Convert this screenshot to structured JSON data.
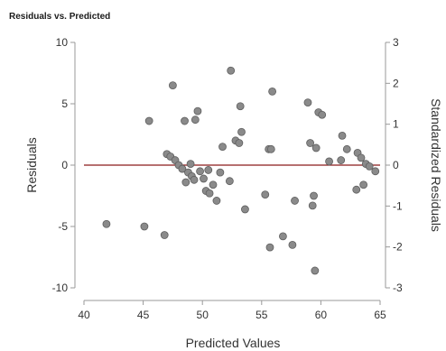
{
  "chart_data": {
    "type": "scatter",
    "title": "Residuals vs. Predicted",
    "xlabel": "Predicted Values",
    "ylabel": "Residuals",
    "y2label": "Standardized Residuals",
    "xlim": [
      40,
      65
    ],
    "ylim": [
      -10,
      10
    ],
    "y2lim": [
      -3,
      3
    ],
    "x_ticks": [
      "40",
      "45",
      "50",
      "55",
      "60",
      "65"
    ],
    "y_ticks": [
      "10",
      "5",
      "0",
      "-5",
      "-10"
    ],
    "y2_ticks": [
      "3",
      "2",
      "1",
      "0",
      "-1",
      "-2",
      "-3"
    ],
    "reference_line_y": 0,
    "grid": false,
    "colors": {
      "point_fill": "#8a8a8a",
      "point_stroke": "#5e5e5e",
      "reference_line": "#8b1a1a",
      "axis": "#999999"
    },
    "points": [
      {
        "x": 41.9,
        "y": -4.8
      },
      {
        "x": 45.1,
        "y": -5.0
      },
      {
        "x": 45.5,
        "y": 3.6
      },
      {
        "x": 46.8,
        "y": -5.7
      },
      {
        "x": 47.0,
        "y": 0.9
      },
      {
        "x": 47.3,
        "y": 0.7
      },
      {
        "x": 47.5,
        "y": 6.5
      },
      {
        "x": 47.7,
        "y": 0.4
      },
      {
        "x": 48.0,
        "y": 0.0
      },
      {
        "x": 48.3,
        "y": -0.3
      },
      {
        "x": 48.5,
        "y": 3.6
      },
      {
        "x": 48.6,
        "y": -1.4
      },
      {
        "x": 48.8,
        "y": -0.6
      },
      {
        "x": 49.0,
        "y": 0.1
      },
      {
        "x": 49.1,
        "y": -0.9
      },
      {
        "x": 49.3,
        "y": -1.2
      },
      {
        "x": 49.4,
        "y": 3.7
      },
      {
        "x": 49.6,
        "y": 4.4
      },
      {
        "x": 49.8,
        "y": -0.5
      },
      {
        "x": 50.1,
        "y": -1.1
      },
      {
        "x": 50.3,
        "y": -2.1
      },
      {
        "x": 50.5,
        "y": -0.4
      },
      {
        "x": 50.6,
        "y": -2.3
      },
      {
        "x": 50.9,
        "y": -1.6
      },
      {
        "x": 51.2,
        "y": -2.9
      },
      {
        "x": 51.5,
        "y": -0.6
      },
      {
        "x": 51.7,
        "y": 1.5
      },
      {
        "x": 52.3,
        "y": -1.3
      },
      {
        "x": 52.4,
        "y": 7.7
      },
      {
        "x": 52.8,
        "y": 2.0
      },
      {
        "x": 53.1,
        "y": 1.8
      },
      {
        "x": 53.2,
        "y": 4.8
      },
      {
        "x": 53.3,
        "y": 2.7
      },
      {
        "x": 53.6,
        "y": -3.6
      },
      {
        "x": 55.3,
        "y": -2.4
      },
      {
        "x": 55.6,
        "y": 1.3
      },
      {
        "x": 55.7,
        "y": -6.7
      },
      {
        "x": 55.8,
        "y": 1.3
      },
      {
        "x": 55.9,
        "y": 6.0
      },
      {
        "x": 56.8,
        "y": -5.8
      },
      {
        "x": 57.6,
        "y": -6.5
      },
      {
        "x": 57.8,
        "y": -2.9
      },
      {
        "x": 58.9,
        "y": 5.1
      },
      {
        "x": 59.1,
        "y": 1.8
      },
      {
        "x": 59.3,
        "y": -3.3
      },
      {
        "x": 59.4,
        "y": -2.5
      },
      {
        "x": 59.5,
        "y": -8.6
      },
      {
        "x": 59.6,
        "y": 1.4
      },
      {
        "x": 59.8,
        "y": 4.3
      },
      {
        "x": 60.1,
        "y": 4.1
      },
      {
        "x": 60.7,
        "y": 0.3
      },
      {
        "x": 61.7,
        "y": 0.4
      },
      {
        "x": 61.8,
        "y": 2.4
      },
      {
        "x": 62.2,
        "y": 1.3
      },
      {
        "x": 63.0,
        "y": -2.0
      },
      {
        "x": 63.1,
        "y": 1.0
      },
      {
        "x": 63.4,
        "y": 0.6
      },
      {
        "x": 63.6,
        "y": -1.6
      },
      {
        "x": 63.8,
        "y": 0.1
      },
      {
        "x": 64.1,
        "y": -0.1
      },
      {
        "x": 64.6,
        "y": -0.5
      }
    ]
  }
}
